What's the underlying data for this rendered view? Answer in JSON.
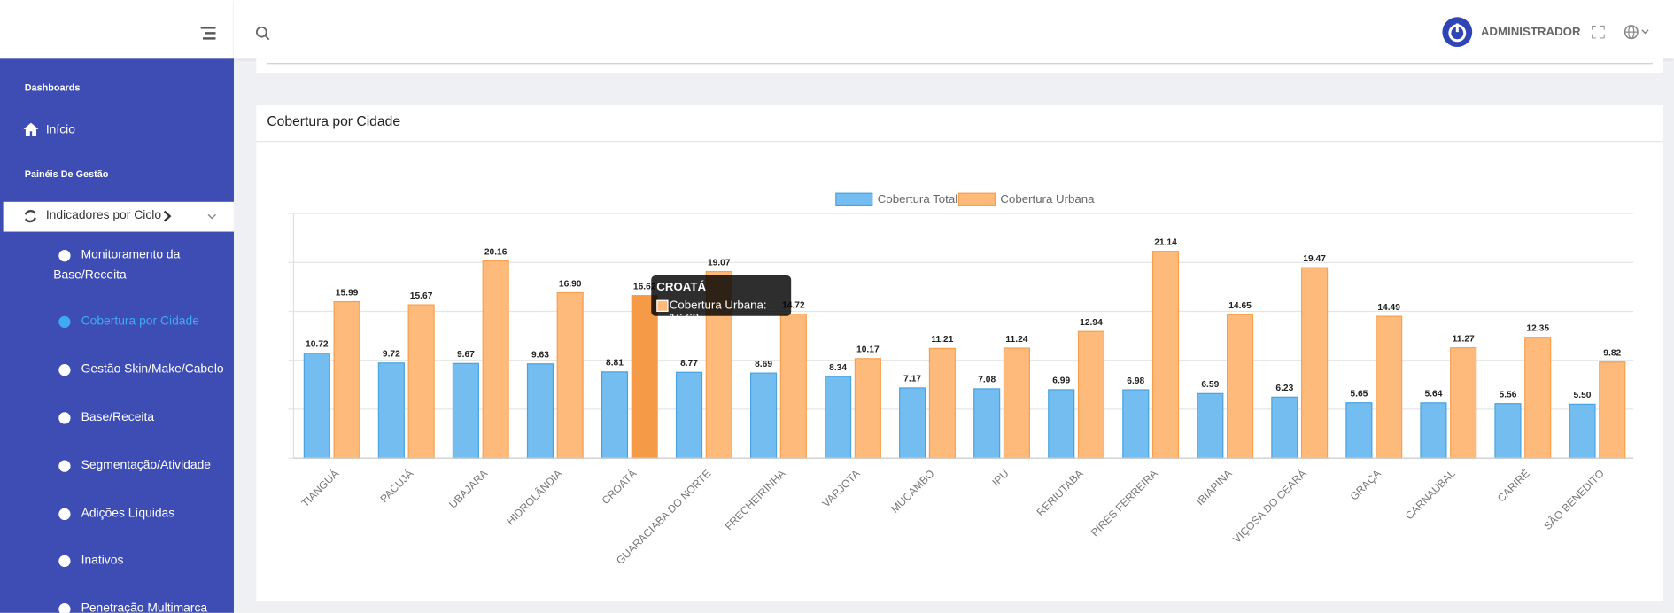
{
  "header": {
    "user": "ADMINISTRADOR"
  },
  "sidebar": {
    "heading_dashboards": "Dashboards",
    "home": "Início",
    "heading_panels": "Painéis De Gestão",
    "group": "Indicadores por Ciclo",
    "items": [
      "Monitoramento da Base/Receita",
      "Cobertura por Cidade",
      "Gestão Skin/Make/Cabelo",
      "Base/Receita",
      "Segmentação/Atividade",
      "Adições Líquidas",
      "Inativos",
      "Penetração Multimarca"
    ]
  },
  "chart_data": {
    "type": "bar",
    "title": "Cobertura por Cidade",
    "categories": [
      "TIANGUÁ",
      "PACUJÁ",
      "UBAJARA",
      "HIDROLÂNDIA",
      "CROATÁ",
      "GUARACIABA DO NORTE",
      "FRECHEIRINHA",
      "VARJOTA",
      "MUCAMBO",
      "IPU",
      "RERIUTABA",
      "PIRES FERREIRA",
      "IBIAPINA",
      "VIÇOSA DO CEARÁ",
      "GRAÇA",
      "CARNAUBAL",
      "CARIRÉ",
      "SÃO BENEDITO"
    ],
    "series": [
      {
        "name": "Cobertura Total",
        "color": "#74bdf0",
        "values": [
          10.72,
          9.72,
          9.67,
          9.63,
          8.81,
          8.77,
          8.69,
          8.34,
          7.17,
          7.08,
          6.99,
          6.98,
          6.59,
          6.23,
          5.65,
          5.64,
          5.56,
          5.5
        ],
        "value_labels": [
          "10.72",
          "9.72",
          "9.67",
          "9.63",
          "8.81",
          "8.77",
          "8.69",
          "8.34",
          "7.17",
          "7.08",
          "6.99",
          "6.98",
          "6.59",
          "6.23",
          "5.65",
          "5.64",
          "5.56",
          "5.50"
        ]
      },
      {
        "name": "Cobertura Urbana",
        "color": "#fdba7b",
        "values": [
          15.99,
          15.67,
          20.16,
          16.9,
          16.62,
          19.07,
          14.72,
          10.17,
          11.21,
          11.24,
          12.94,
          21.14,
          14.65,
          19.47,
          14.49,
          11.27,
          12.35,
          9.82
        ],
        "value_labels": [
          "15.99",
          "15.67",
          "20.16",
          "16.90",
          "16.62",
          "19.07",
          "14.72",
          "10.17",
          "11.21",
          "11.24",
          "12.94",
          "21.14",
          "14.65",
          "19.47",
          "14.49",
          "11.27",
          "12.35",
          "9.82"
        ]
      }
    ],
    "ylim": [
      0,
      25
    ],
    "yticks": [
      0,
      5,
      10,
      15,
      20,
      25
    ],
    "grid": true,
    "legend": "top",
    "tooltip": {
      "title": "CROATÁ",
      "label": "Cobertura Urbana: 16.62"
    }
  }
}
